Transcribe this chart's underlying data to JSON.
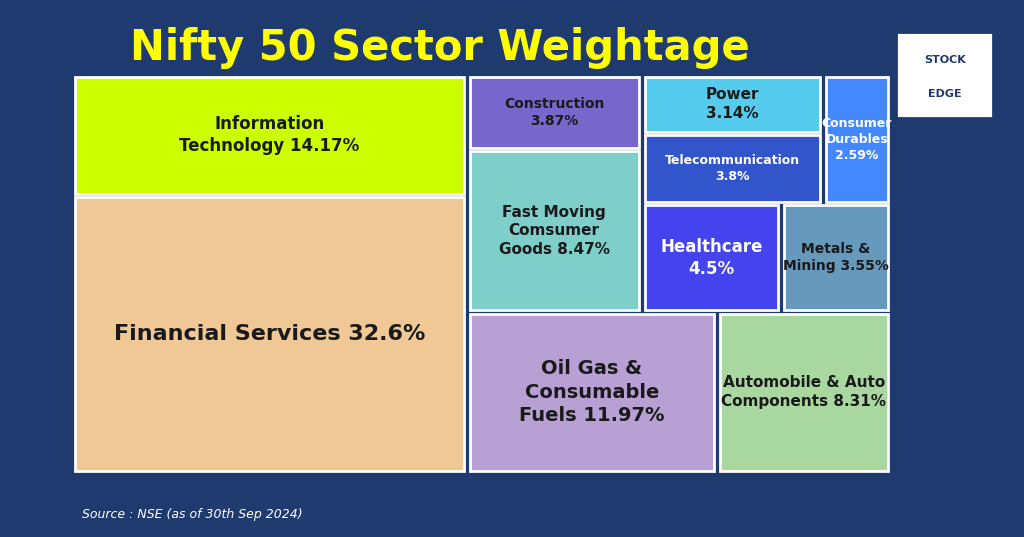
{
  "title": "Nifty 50 Sector Weightage",
  "source_text": "Source : NSE (as of 30th Sep 2024)",
  "background_color": "#1e3a6e",
  "sectors": [
    {
      "label": "Financial Services",
      "value": 32.6,
      "color": "#f0c896",
      "text_color": "#1a1a1a",
      "fontsize": 16,
      "label_display": "Financial Services 32.6%"
    },
    {
      "label": "Information\nTechnology",
      "value": 14.17,
      "color": "#ccff00",
      "text_color": "#1a1a1a",
      "fontsize": 12,
      "label_display": "Information\nTechnology 14.17%"
    },
    {
      "label": "Oil Gas &\nConsumable\nFuels",
      "value": 11.97,
      "color": "#b9a0d4",
      "text_color": "#1a1a1a",
      "fontsize": 14,
      "label_display": "Oil Gas &\nConsumable\nFuels 11.97%"
    },
    {
      "label": "Automobile & Auto\nComponents",
      "value": 8.31,
      "color": "#a8d8a0",
      "text_color": "#1a1a1a",
      "fontsize": 11,
      "label_display": "Automobile & Auto\nComponents 8.31%"
    },
    {
      "label": "Fast Moving\nComsumer\nGoods",
      "value": 8.47,
      "color": "#7ececa",
      "text_color": "#1a1a1a",
      "fontsize": 11,
      "label_display": "Fast Moving\nComsumer\nGoods 8.47%"
    },
    {
      "label": "Construction",
      "value": 3.87,
      "color": "#7766cc",
      "text_color": "#1a1a1a",
      "fontsize": 10,
      "label_display": "Construction\n3.87%"
    },
    {
      "label": "Healthcare",
      "value": 4.5,
      "color": "#4444ee",
      "text_color": "#ffffff",
      "fontsize": 12,
      "label_display": "Healthcare\n4.5%"
    },
    {
      "label": "Metals &\nMining",
      "value": 3.55,
      "color": "#6699bb",
      "text_color": "#1a1a1a",
      "fontsize": 10,
      "label_display": "Metals &\nMining 3.55%"
    },
    {
      "label": "Telecommunication",
      "value": 3.8,
      "color": "#3355cc",
      "text_color": "#ffffff",
      "fontsize": 9,
      "label_display": "Telecommunication\n3.8%"
    },
    {
      "label": "Power",
      "value": 3.14,
      "color": "#55ccee",
      "text_color": "#1a1a1a",
      "fontsize": 11,
      "label_display": "Power\n3.14%"
    },
    {
      "label": "Consumer\nDurables",
      "value": 2.59,
      "color": "#4488ff",
      "text_color": "#ffffff",
      "fontsize": 9,
      "label_display": "Consumer\nDurables\n2.59%"
    }
  ],
  "title_color": "#ffff00",
  "title_fontsize": 30
}
